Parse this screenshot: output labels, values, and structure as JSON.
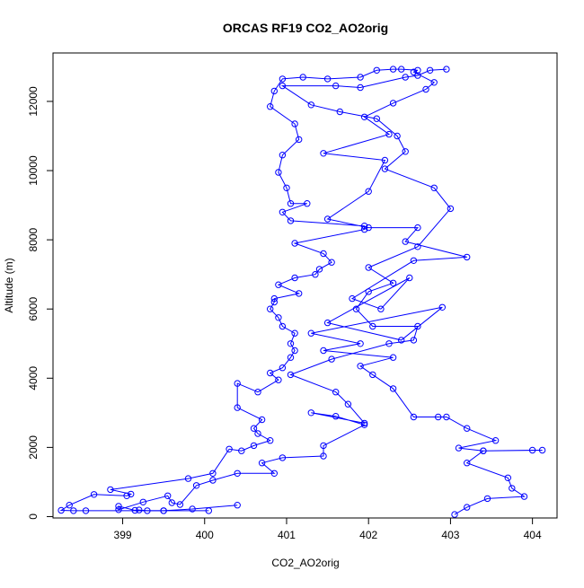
{
  "chart_data": {
    "type": "line",
    "title": "ORCAS RF19 CO2_AO2orig",
    "xlabel": "CO2_AO2orig",
    "ylabel": "Altitude (m)",
    "xlim": [
      398.15,
      404.3
    ],
    "ylim": [
      -40,
      13400
    ],
    "x_ticks": [
      399,
      400,
      401,
      402,
      403,
      404
    ],
    "y_ticks": [
      0,
      2000,
      4000,
      6000,
      8000,
      10000,
      12000
    ],
    "grid": false,
    "legend": "none",
    "series": [
      {
        "color": "#0000ff",
        "marker": "open-circle",
        "points": [
          [
            403.05,
            60
          ],
          [
            403.2,
            270
          ],
          [
            403.45,
            520
          ],
          [
            403.9,
            580
          ],
          [
            403.75,
            820
          ],
          [
            403.7,
            1120
          ],
          [
            403.2,
            1550
          ],
          [
            403.4,
            1900
          ],
          [
            404.0,
            1920
          ],
          [
            404.12,
            1920
          ],
          [
            403.4,
            1900
          ],
          [
            403.1,
            1980
          ],
          [
            403.55,
            2200
          ],
          [
            403.2,
            2550
          ],
          [
            402.95,
            2880
          ],
          [
            402.85,
            2880
          ],
          [
            402.55,
            2880
          ],
          [
            402.3,
            3700
          ],
          [
            402.05,
            4100
          ],
          [
            401.9,
            4350
          ],
          [
            402.3,
            4600
          ],
          [
            401.45,
            4800
          ],
          [
            401.9,
            5000
          ],
          [
            401.3,
            5300
          ],
          [
            402.9,
            6050
          ],
          [
            402.4,
            5100
          ],
          [
            401.5,
            5600
          ],
          [
            402.5,
            6900
          ],
          [
            402.15,
            6000
          ],
          [
            401.8,
            6300
          ],
          [
            402.55,
            7400
          ],
          [
            403.2,
            7500
          ],
          [
            402.45,
            7950
          ],
          [
            402.6,
            8350
          ],
          [
            402.0,
            8350
          ],
          [
            401.5,
            8600
          ],
          [
            402.0,
            9400
          ],
          [
            402.2,
            10300
          ],
          [
            401.45,
            10500
          ],
          [
            402.25,
            11050
          ],
          [
            401.95,
            11550
          ],
          [
            402.3,
            11950
          ],
          [
            402.7,
            12350
          ],
          [
            402.8,
            12550
          ],
          [
            402.55,
            12850
          ],
          [
            402.6,
            12900
          ],
          [
            402.4,
            12930
          ],
          [
            402.3,
            12930
          ],
          [
            402.1,
            12900
          ],
          [
            401.9,
            12700
          ],
          [
            401.5,
            12650
          ],
          [
            401.2,
            12700
          ],
          [
            400.95,
            12650
          ],
          [
            400.85,
            12300
          ],
          [
            400.8,
            11850
          ],
          [
            401.1,
            11350
          ],
          [
            401.15,
            10900
          ],
          [
            400.95,
            10450
          ],
          [
            400.9,
            9950
          ],
          [
            401.0,
            9500
          ],
          [
            401.05,
            9050
          ],
          [
            401.25,
            9050
          ],
          [
            400.95,
            8800
          ],
          [
            401.05,
            8550
          ],
          [
            401.95,
            8400
          ],
          [
            401.95,
            8300
          ],
          [
            401.1,
            7900
          ],
          [
            401.45,
            7600
          ],
          [
            401.55,
            7350
          ],
          [
            401.4,
            7150
          ],
          [
            401.35,
            7000
          ],
          [
            401.1,
            6900
          ],
          [
            400.9,
            6700
          ],
          [
            401.15,
            6450
          ],
          [
            400.85,
            6300
          ],
          [
            400.85,
            6200
          ],
          [
            400.8,
            6000
          ],
          [
            400.9,
            5750
          ],
          [
            400.95,
            5500
          ],
          [
            401.1,
            5300
          ],
          [
            401.05,
            5000
          ],
          [
            401.1,
            4800
          ],
          [
            401.05,
            4600
          ],
          [
            400.95,
            4300
          ],
          [
            400.8,
            4150
          ],
          [
            400.9,
            3950
          ],
          [
            400.65,
            3600
          ],
          [
            400.4,
            3850
          ],
          [
            400.4,
            3150
          ],
          [
            400.7,
            2800
          ],
          [
            400.6,
            2550
          ],
          [
            400.65,
            2400
          ],
          [
            400.8,
            2200
          ],
          [
            400.6,
            2050
          ],
          [
            400.45,
            1900
          ],
          [
            400.3,
            1950
          ],
          [
            400.1,
            1250
          ],
          [
            399.8,
            1100
          ],
          [
            398.85,
            780
          ],
          [
            399.1,
            650
          ],
          [
            399.05,
            600
          ],
          [
            398.65,
            640
          ],
          [
            398.35,
            330
          ],
          [
            398.25,
            180
          ],
          [
            398.4,
            170
          ],
          [
            398.55,
            170
          ],
          [
            399.5,
            170
          ],
          [
            400.05,
            170
          ]
        ]
      },
      {
        "color": "#0000ff",
        "marker": "open-circle",
        "points": [
          [
            400.4,
            330
          ],
          [
            399.85,
            220
          ],
          [
            399.5,
            170
          ],
          [
            399.3,
            170
          ],
          [
            399.2,
            190
          ],
          [
            399.15,
            180
          ],
          [
            398.95,
            300
          ],
          [
            398.95,
            200
          ],
          [
            399.25,
            420
          ],
          [
            399.55,
            600
          ],
          [
            399.6,
            400
          ],
          [
            399.7,
            350
          ],
          [
            399.9,
            900
          ],
          [
            400.1,
            1050
          ],
          [
            400.4,
            1250
          ],
          [
            400.85,
            1250
          ],
          [
            400.7,
            1550
          ],
          [
            400.95,
            1700
          ],
          [
            401.45,
            1750
          ],
          [
            401.45,
            2050
          ],
          [
            401.95,
            2650
          ],
          [
            401.6,
            2900
          ],
          [
            401.3,
            3000
          ],
          [
            401.95,
            2700
          ],
          [
            401.75,
            3250
          ],
          [
            401.6,
            3600
          ],
          [
            401.05,
            4100
          ],
          [
            401.55,
            4550
          ],
          [
            402.25,
            5000
          ],
          [
            402.55,
            5100
          ],
          [
            402.6,
            5500
          ],
          [
            402.05,
            5500
          ],
          [
            401.85,
            6000
          ],
          [
            402.0,
            6500
          ],
          [
            402.3,
            6750
          ],
          [
            402.0,
            7200
          ],
          [
            402.6,
            7800
          ],
          [
            403.0,
            8900
          ],
          [
            402.8,
            9500
          ],
          [
            402.2,
            10050
          ],
          [
            402.45,
            10550
          ],
          [
            402.35,
            11000
          ],
          [
            402.1,
            11500
          ],
          [
            401.65,
            11700
          ],
          [
            401.3,
            11900
          ],
          [
            400.95,
            12450
          ],
          [
            401.6,
            12450
          ],
          [
            401.9,
            12400
          ],
          [
            402.45,
            12700
          ],
          [
            402.6,
            12750
          ],
          [
            402.75,
            12900
          ],
          [
            402.95,
            12930
          ]
        ]
      }
    ]
  }
}
